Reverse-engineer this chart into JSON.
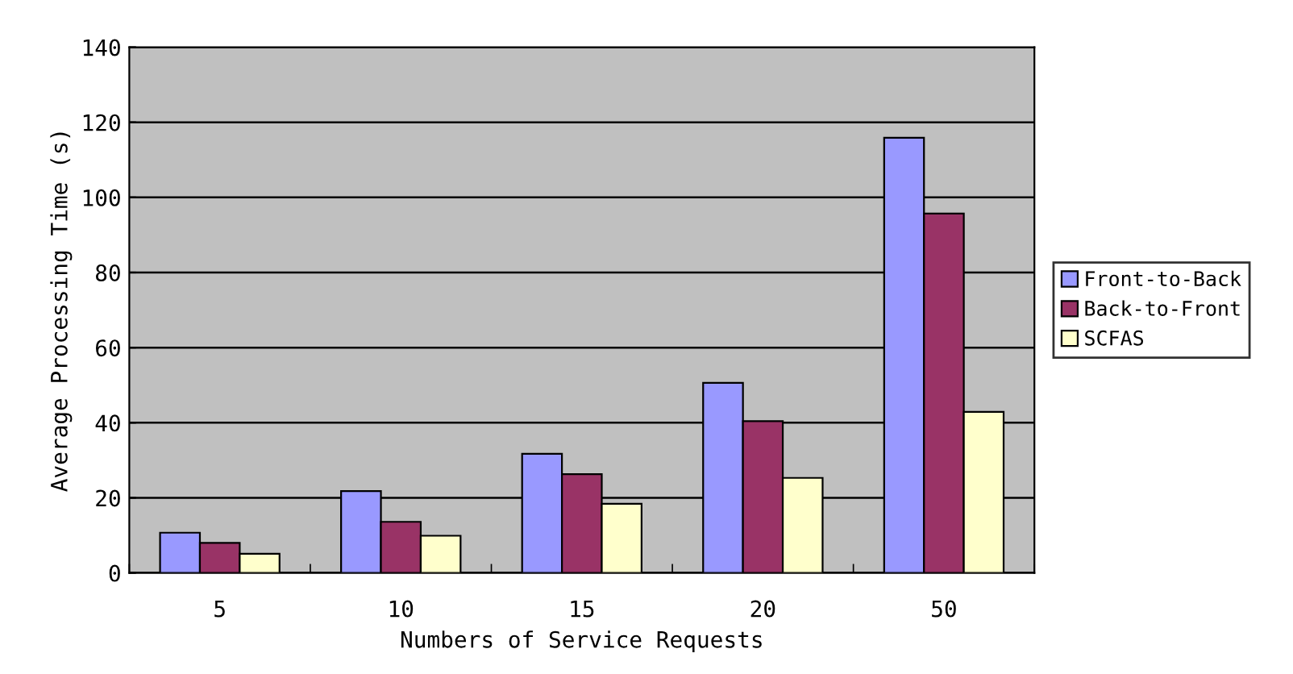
{
  "chart_data": {
    "type": "bar",
    "xlabel": "Numbers of Service Requests",
    "ylabel": "Average Processing Time (s)",
    "categories": [
      "5",
      "10",
      "15",
      "20",
      "50"
    ],
    "series": [
      {
        "name": "Front-to-Back",
        "color": "#9999ff",
        "values": [
          10.7,
          21.8,
          31.7,
          50.6,
          115.9
        ]
      },
      {
        "name": "Back-to-Front",
        "color": "#993366",
        "values": [
          8.0,
          13.6,
          26.3,
          40.4,
          95.7
        ]
      },
      {
        "name": "SCFAS",
        "color": "#ffffcc",
        "values": [
          5.1,
          9.9,
          18.4,
          25.3,
          42.9
        ]
      }
    ],
    "ylim": [
      0,
      140
    ],
    "yticks": [
      0,
      20,
      40,
      60,
      80,
      100,
      120,
      140
    ],
    "grid": "y",
    "legend": "right"
  }
}
